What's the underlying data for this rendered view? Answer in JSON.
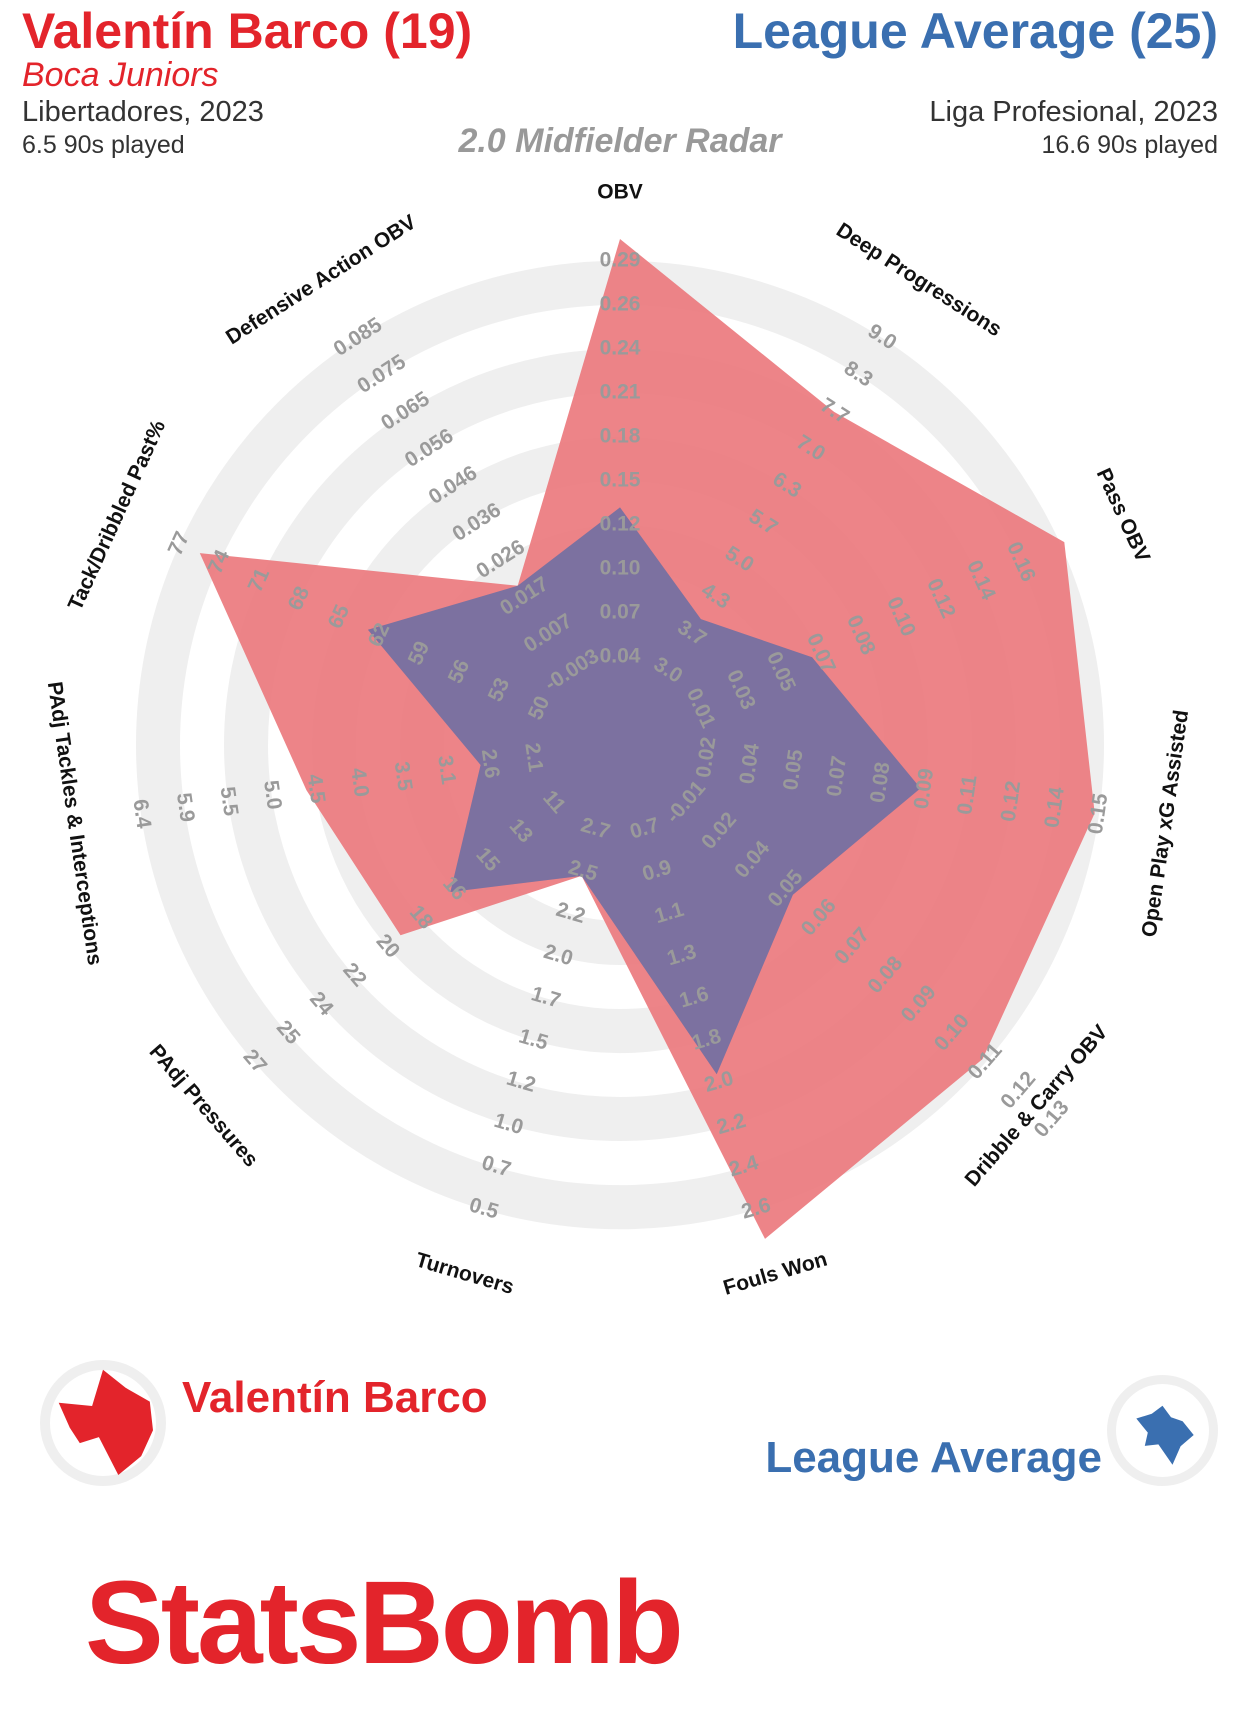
{
  "header": {
    "player_name": "Valentín Barco (19)",
    "player_team": "Boca Juniors",
    "player_competition": "Libertadores, 2023",
    "player_minutes": "6.5 90s played",
    "average_name": "League Average (25)",
    "average_competition": "Liga Profesional, 2023",
    "average_minutes": "16.6 90s played",
    "radar_title": "2.0 Midfielder Radar"
  },
  "legend": {
    "player_label": "Valentín Barco",
    "average_label": "League Average"
  },
  "brand": "StatsBomb",
  "colors": {
    "player": "#e3242b",
    "player_fill": "#ec7a7e",
    "average": "#3a6fb0",
    "average_fill": "#6a70a6",
    "ring": "#efefef",
    "tick": "#9a9a9a"
  },
  "chart_data": {
    "type": "radar",
    "rings": 11,
    "axes": [
      {
        "label": "OBV",
        "ticks": [
          "0.04",
          "0.07",
          "0.10",
          "0.12",
          "0.15",
          "0.18",
          "0.21",
          "0.24",
          "0.26",
          "0.29"
        ],
        "player": 10.5,
        "average": 4.4
      },
      {
        "label": "Deep Progressions",
        "ticks": [
          "3.0",
          "3.7",
          "4.3",
          "5.0",
          "5.7",
          "6.3",
          "7.0",
          "7.7",
          "8.3",
          "9.0"
        ],
        "player": 8.0,
        "average": 2.4
      },
      {
        "label": "Pass OBV",
        "ticks": [
          "0.01",
          "0.03",
          "0.05",
          "0.07",
          "0.08",
          "0.10",
          "0.12",
          "0.14",
          "0.16"
        ],
        "player": 10.1,
        "average": 3.8
      },
      {
        "label": "Open Play xG Assisted",
        "ticks": [
          "0.02",
          "0.04",
          "0.05",
          "0.07",
          "0.08",
          "0.09",
          "0.11",
          "0.12",
          "0.14",
          "0.15"
        ],
        "player": 9.9,
        "average": 5.9
      },
      {
        "label": "Dribble & Carry OBV",
        "ticks": [
          "-0.01",
          "0.02",
          "0.04",
          "0.05",
          "0.06",
          "0.07",
          "0.08",
          "0.09",
          "0.10",
          "0.11",
          "0.12",
          "0.13"
        ],
        "player": 9.9,
        "average": 4.2
      },
      {
        "label": "Fouls Won",
        "ticks": [
          "0.7",
          "0.9",
          "1.1",
          "1.3",
          "1.6",
          "1.8",
          "2.0",
          "2.2",
          "2.4",
          "2.6"
        ],
        "player": 10.7,
        "average": 6.8
      },
      {
        "label": "Turnovers",
        "ticks": [
          "2.7",
          "2.5",
          "2.2",
          "2.0",
          "1.7",
          "1.5",
          "1.2",
          "1.0",
          "0.7",
          "0.5"
        ],
        "player": 2.1,
        "average": 2.1
      },
      {
        "label": "PAdj Pressures",
        "ticks": [
          "11",
          "13",
          "15",
          "16",
          "18",
          "20",
          "22",
          "24",
          "25",
          "27"
        ],
        "player": 5.6,
        "average": 4.1
      },
      {
        "label": "PAdj Tackles & Interceptions",
        "ticks": [
          "2.1",
          "2.6",
          "3.1",
          "3.5",
          "4.0",
          "4.5",
          "5.0",
          "5.5",
          "5.9",
          "6.4"
        ],
        "player": 6.2,
        "average": 2.2
      },
      {
        "label": "Tack/Dribbled Past%",
        "ticks": [
          "50",
          "53",
          "56",
          "59",
          "62",
          "65",
          "68",
          "71",
          "74",
          "77"
        ],
        "player": 9.5,
        "average": 5.3
      },
      {
        "label": "Defensive Action OBV",
        "ticks": [
          "-0.003",
          "0.007",
          "0.017",
          "0.026",
          "0.036",
          "0.046",
          "0.056",
          "0.065",
          "0.075",
          "0.085"
        ],
        "player": 3.3,
        "average": 3.3
      }
    ]
  }
}
